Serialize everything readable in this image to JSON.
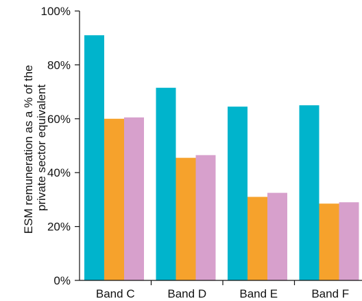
{
  "chart_data": {
    "type": "bar",
    "categories": [
      "Band C",
      "Band D",
      "Band E",
      "Band F"
    ],
    "series": [
      {
        "values": [
          91,
          71.5,
          64.5,
          65
        ],
        "color": "#00B4CC"
      },
      {
        "values": [
          60,
          45.5,
          31,
          28.5
        ],
        "color": "#F6A22C"
      },
      {
        "values": [
          60.5,
          46.5,
          32.5,
          29
        ],
        "color": "#D7A0CC"
      }
    ],
    "ylabel": [
      "ESM remuneration as a % of the",
      "private sector equivalent"
    ],
    "ylim": [
      0,
      100
    ],
    "yticks": [
      0,
      20,
      40,
      60,
      80,
      100
    ],
    "ytick_labels": [
      "0%",
      "20%",
      "40%",
      "60%",
      "80%",
      "100%"
    ],
    "grid": false
  }
}
